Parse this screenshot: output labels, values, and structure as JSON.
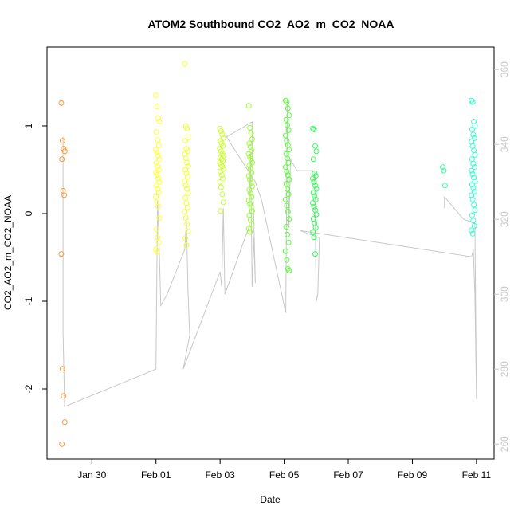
{
  "chart_data": {
    "type": "scatter",
    "title": "ATOM2 Southbound CO2_AO2_m_CO2_NOAA",
    "xlabel": "Date",
    "ylabel": "CO2_AO2_m_CO2_NOAA",
    "x_unit": "day of 2017",
    "x_ticks": [
      {
        "value": 30,
        "label": "Jan 30"
      },
      {
        "value": 32,
        "label": "Feb 01"
      },
      {
        "value": 34,
        "label": "Feb 03"
      },
      {
        "value": 36,
        "label": "Feb 05"
      },
      {
        "value": 38,
        "label": "Feb 07"
      },
      {
        "value": 40,
        "label": "Feb 09"
      },
      {
        "value": 42,
        "label": "Feb 11"
      }
    ],
    "xlim": [
      28.6,
      42.55
    ],
    "ylim": [
      -2.8,
      1.9
    ],
    "y_ticks": [
      -2,
      -1,
      0,
      1
    ],
    "y2lim": [
      256,
      366
    ],
    "y2_ticks": [
      260,
      280,
      300,
      320,
      340,
      360
    ],
    "y2_color": "#c8c8c8",
    "line_color": "#c8c8c8",
    "grid": false,
    "flights": [
      {
        "color": "#ff9933",
        "day": 29.1,
        "values": [
          1.26,
          0.83,
          0.74,
          0.71,
          0.62,
          0.26,
          0.21,
          -0.46,
          -1.77,
          -2.08,
          -2.38,
          -2.63
        ]
      },
      {
        "color": "#ffff33",
        "day": 32.05,
        "values": [
          1.35,
          1.22,
          1.09,
          1.05,
          0.93,
          0.84,
          0.78,
          0.73,
          0.7,
          0.66,
          0.62,
          0.58,
          0.54,
          0.5,
          0.47,
          0.44,
          0.4,
          0.36,
          0.32,
          0.28,
          0.24,
          0.19,
          0.13,
          0.08,
          -0.05,
          -0.18,
          -0.27,
          -0.33,
          -0.41,
          -0.44
        ]
      },
      {
        "color": "#f0ff33",
        "day": 32.95,
        "values": [
          1.71,
          1.0,
          0.97,
          0.87,
          0.83,
          0.74,
          0.71,
          0.68,
          0.63,
          0.58,
          0.54,
          0.5,
          0.46,
          0.42,
          0.37,
          0.32,
          0.28,
          0.23,
          0.18,
          0.12,
          0.07,
          0.02,
          -0.05,
          -0.12,
          -0.2,
          -0.28,
          -0.36
        ]
      },
      {
        "color": "#ccff33",
        "day": 34.05,
        "values": [
          0.97,
          0.94,
          0.9,
          0.86,
          0.83,
          0.8,
          0.77,
          0.74,
          0.71,
          0.68,
          0.66,
          0.64,
          0.62,
          0.6,
          0.58,
          0.56,
          0.54,
          0.51,
          0.48,
          0.44,
          0.4,
          0.36,
          0.3,
          0.22,
          0.13,
          0.03
        ]
      },
      {
        "color": "#99ff33",
        "day": 34.95,
        "values": [
          1.23,
          0.98,
          0.92,
          0.85,
          0.8,
          0.76,
          0.72,
          0.68,
          0.65,
          0.62,
          0.58,
          0.55,
          0.51,
          0.47,
          0.43,
          0.39,
          0.35,
          0.31,
          0.27,
          0.23,
          0.19,
          0.15,
          0.11,
          0.07,
          0.03,
          -0.02,
          -0.07,
          -0.12,
          -0.17,
          -0.21
        ]
      },
      {
        "color": "#55ff33",
        "day": 36.1,
        "values": [
          1.29,
          1.27,
          1.2,
          1.12,
          1.07,
          1.01,
          0.95,
          0.89,
          0.83,
          0.78,
          0.73,
          0.68,
          0.63,
          0.58,
          0.53,
          0.48,
          0.44,
          0.39,
          0.34,
          0.28,
          0.22,
          0.16,
          0.09,
          0.02,
          -0.06,
          -0.15,
          -0.24,
          -0.33,
          -0.43,
          -0.53,
          -0.63,
          -0.65
        ]
      },
      {
        "color": "#33ff55",
        "day": 36.95,
        "values": [
          0.97,
          0.96,
          0.77,
          0.71,
          0.62,
          0.46,
          0.43,
          0.4,
          0.36,
          0.32,
          0.28,
          0.24,
          0.2,
          0.16,
          0.12,
          0.08,
          0.04,
          -0.01,
          -0.06,
          -0.11,
          -0.16,
          -0.21,
          -0.27,
          -0.46
        ]
      },
      {
        "color": "#33ff99",
        "day": 41.0,
        "values": [
          0.53,
          0.49,
          0.32
        ]
      },
      {
        "color": "#33ffcc",
        "day": 41.9,
        "values": [
          1.29,
          1.27,
          1.05,
          1.0,
          0.96,
          0.9,
          0.86,
          0.82,
          0.77,
          0.72,
          0.67,
          0.62,
          0.57,
          0.53,
          0.49,
          0.45,
          0.41,
          0.37,
          0.33,
          0.29,
          0.25,
          0.21,
          0.16,
          0.1,
          0.04,
          -0.02,
          -0.08,
          -0.14,
          -0.19,
          -0.23
        ]
      }
    ],
    "altitude_track": [
      [
        29.1,
        342
      ],
      [
        29.1,
        290
      ],
      [
        29.15,
        270
      ],
      [
        32.0,
        280
      ],
      [
        32.05,
        325
      ],
      [
        32.1,
        312
      ],
      [
        32.15,
        297
      ],
      [
        32.35,
        300
      ],
      [
        32.9,
        312
      ],
      [
        32.95,
        320
      ],
      [
        33.0,
        301
      ],
      [
        33.05,
        289
      ],
      [
        32.85,
        280
      ],
      [
        34.0,
        306
      ],
      [
        34.05,
        302
      ],
      [
        34.1,
        323
      ],
      [
        34.15,
        300
      ],
      [
        34.9,
        318
      ],
      [
        34.95,
        338
      ],
      [
        35.0,
        302
      ],
      [
        35.05,
        315
      ],
      [
        35.1,
        303
      ],
      [
        35.0,
        338
      ],
      [
        35.0,
        346
      ],
      [
        34.2,
        342
      ],
      [
        35.1,
        330
      ],
      [
        35.3,
        325
      ],
      [
        36.05,
        295
      ],
      [
        36.1,
        352
      ],
      [
        36.15,
        318
      ],
      [
        36.2,
        336
      ],
      [
        36.4,
        333
      ],
      [
        36.95,
        333
      ],
      [
        37.0,
        298
      ],
      [
        37.05,
        300
      ],
      [
        37.1,
        315
      ],
      [
        36.5,
        317
      ],
      [
        41.85,
        310
      ],
      [
        41.9,
        312
      ],
      [
        41.95,
        300
      ],
      [
        42.0,
        272
      ],
      [
        41.95,
        319
      ],
      [
        41.6,
        320
      ],
      [
        41.0,
        326
      ],
      [
        41.0,
        323
      ]
    ]
  }
}
